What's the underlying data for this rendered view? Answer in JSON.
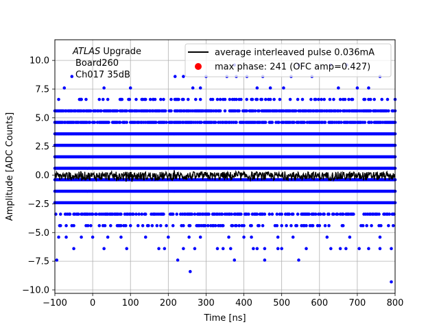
{
  "chart_data": {
    "type": "scatter",
    "xlabel": "Time [ns]",
    "ylabel": "Amplitude [ADC Counts]",
    "xlim": [
      -100,
      800
    ],
    "ylim": [
      -10.3,
      11.8
    ],
    "xticks": [
      -100,
      0,
      100,
      200,
      300,
      400,
      500,
      600,
      700,
      800
    ],
    "xtick_labels": [
      "−100",
      "0",
      "100",
      "200",
      "300",
      "400",
      "500",
      "600",
      "700",
      "800"
    ],
    "yticks": [
      -10.0,
      -7.5,
      -5.0,
      -2.5,
      0.0,
      2.5,
      5.0,
      7.5,
      10.0
    ],
    "ytick_labels": [
      "−10.0",
      "−7.5",
      "−5.0",
      "−2.5",
      "0.0",
      "2.5",
      "5.0",
      "7.5",
      "10.0"
    ],
    "grid": true,
    "legend_position": "top-right",
    "annotation": {
      "line1_italic": "ATLAS",
      "line1_rest": " Upgrade",
      "line2": "Board260",
      "line3": "Ch017 35dB"
    },
    "series": [
      {
        "name": "average interleaved pulse 0.036mA",
        "kind": "line",
        "color": "#000000",
        "baseline": 0.0,
        "noise_range": [
          -0.45,
          0.55
        ]
      },
      {
        "name": "max phase: 241 (OFC amp=0.427)",
        "kind": "marker",
        "color": "#ff0000",
        "x": [
          241
        ],
        "y": [
          0.427
        ]
      },
      {
        "name": "",
        "kind": "scatter",
        "color": "#0000ff",
        "quantized_levels": [
          -9.3,
          -8.4,
          -7.4,
          -6.4,
          -5.4,
          -4.4,
          -3.4,
          -2.4,
          -1.4,
          -0.4,
          0.6,
          1.6,
          2.6,
          3.6,
          4.6,
          5.6,
          6.6,
          7.6,
          8.6,
          9.6
        ],
        "dense_levels": [
          -2.4,
          -1.4,
          -0.4,
          0.6,
          1.6,
          2.6,
          3.6
        ],
        "sparse_points": [
          [
            -95,
            -7.4
          ],
          [
            -50,
            -6.4
          ],
          [
            30,
            -6.4
          ],
          [
            90,
            -6.4
          ],
          [
            175,
            -6.4
          ],
          [
            190,
            -6.4
          ],
          [
            240,
            -6.4
          ],
          [
            270,
            -6.4
          ],
          [
            330,
            -6.4
          ],
          [
            345,
            -6.4
          ],
          [
            365,
            -6.4
          ],
          [
            425,
            -6.4
          ],
          [
            435,
            -6.4
          ],
          [
            455,
            -6.4
          ],
          [
            490,
            -6.4
          ],
          [
            500,
            -6.4
          ],
          [
            565,
            -6.4
          ],
          [
            630,
            -6.4
          ],
          [
            655,
            -6.4
          ],
          [
            670,
            -6.4
          ],
          [
            705,
            -6.4
          ],
          [
            730,
            -6.4
          ],
          [
            760,
            -6.4
          ],
          [
            790,
            -6.4
          ],
          [
            225,
            -7.4
          ],
          [
            375,
            -7.4
          ],
          [
            455,
            -7.4
          ],
          [
            545,
            -7.4
          ],
          [
            258,
            -8.4
          ],
          [
            790,
            -9.3
          ],
          [
            -90,
            -5.4
          ],
          [
            -70,
            -5.4
          ],
          [
            -30,
            -5.4
          ],
          [
            0,
            -5.4
          ],
          [
            40,
            -5.4
          ],
          [
            75,
            -5.4
          ],
          [
            140,
            -5.4
          ],
          [
            200,
            -5.4
          ],
          [
            255,
            -5.4
          ],
          [
            285,
            -5.4
          ],
          [
            360,
            -5.4
          ],
          [
            400,
            -5.4
          ],
          [
            420,
            -5.4
          ],
          [
            490,
            -5.4
          ],
          [
            530,
            -5.4
          ],
          [
            620,
            -5.4
          ],
          [
            680,
            -5.4
          ],
          [
            760,
            -5.4
          ],
          [
            -90,
            6.6
          ],
          [
            -75,
            7.6
          ],
          [
            -55,
            8.6
          ],
          [
            -30,
            6.6
          ],
          [
            30,
            7.6
          ],
          [
            100,
            7.6
          ],
          [
            160,
            6.6
          ],
          [
            218,
            8.6
          ],
          [
            240,
            8.6
          ],
          [
            265,
            7.6
          ],
          [
            285,
            7.6
          ],
          [
            300,
            8.6
          ],
          [
            330,
            6.6
          ],
          [
            355,
            8.6
          ],
          [
            375,
            9.6
          ],
          [
            380,
            8.6
          ],
          [
            408,
            8.6
          ],
          [
            435,
            7.6
          ],
          [
            450,
            8.6
          ],
          [
            470,
            7.6
          ],
          [
            505,
            7.6
          ],
          [
            525,
            8.6
          ],
          [
            545,
            9.6
          ],
          [
            580,
            8.6
          ],
          [
            630,
            9.6
          ],
          [
            650,
            7.6
          ],
          [
            672,
            9.6
          ],
          [
            700,
            7.6
          ],
          [
            730,
            7.6
          ],
          [
            760,
            8.6
          ],
          [
            780,
            6.6
          ]
        ]
      }
    ]
  }
}
